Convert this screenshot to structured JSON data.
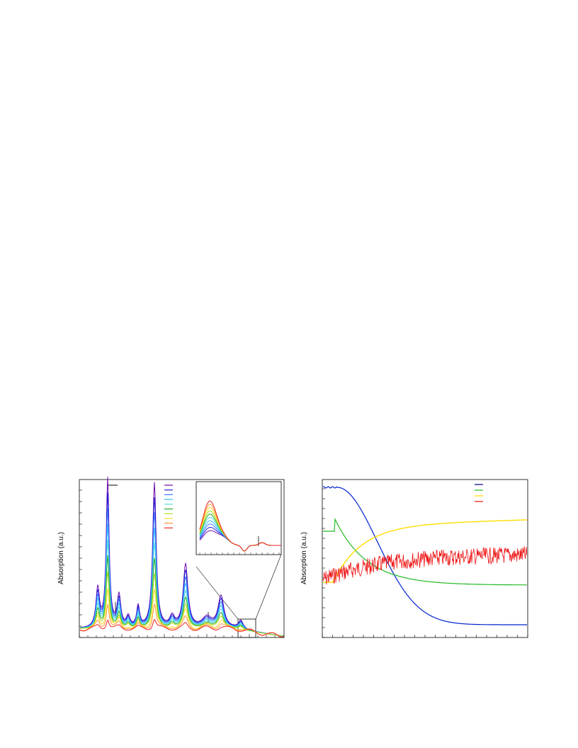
{
  "figure": {
    "left_panel": {
      "y_label": "Absorption (a.u.)"
    },
    "right_panel": {
      "y_label": "Absorption (a.u.)"
    }
  }
}
